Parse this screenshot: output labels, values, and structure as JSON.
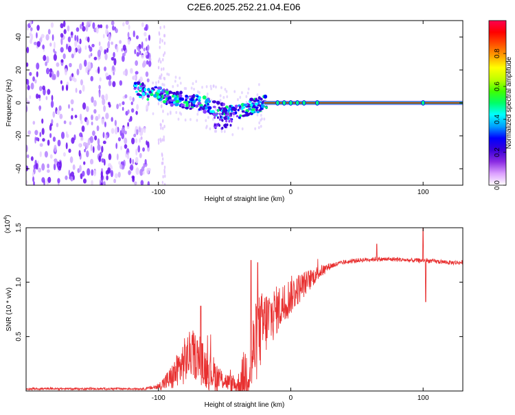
{
  "title": "C2E6.2025.252.21.04.E06",
  "chart_data": [
    {
      "type": "heatmap",
      "name": "spectrogram",
      "xlabel": "Height of straight line (km)",
      "ylabel": "Frequency (Hz)",
      "xlim": [
        -200,
        130
      ],
      "ylim": [
        -50,
        50
      ],
      "xticks": [
        -100,
        0,
        100
      ],
      "yticks": [
        -40,
        -20,
        0,
        20,
        40
      ],
      "colorbar": {
        "label": "Normalized spectral amplitude",
        "range": [
          0,
          1
        ],
        "ticks": [
          "0.0",
          "0.2",
          "0.4",
          "0.6",
          "0.8"
        ],
        "colors": [
          "#ffffff",
          "#dca0ff",
          "#8a2be2",
          "#3a00d8",
          "#0000ff",
          "#00a0ff",
          "#00ffff",
          "#00ff66",
          "#40ff00",
          "#c0ff00",
          "#ffff00",
          "#ffa000",
          "#ff5000",
          "#ff0000",
          "#ff0050"
        ]
      },
      "ridge": {
        "x": [
          -118,
          -110,
          -100,
          -90,
          -80,
          -70,
          -60,
          -55,
          -50,
          -45,
          -40,
          -35,
          -30,
          -25,
          -20,
          -15,
          -10,
          0,
          10,
          20,
          130
        ],
        "freq": [
          9,
          7,
          5,
          3,
          1.5,
          0,
          -2.5,
          -4,
          -5,
          -5.5,
          -5,
          -4,
          -2.5,
          -1.5,
          0,
          0,
          0.5,
          0.5,
          0.5,
          0,
          0
        ]
      },
      "noise_region_x": [
        -200,
        -110
      ],
      "carrier": {
        "x_start": -20,
        "x_end": 130,
        "freq": 0
      }
    },
    {
      "type": "line",
      "name": "snr",
      "xlabel": "Height of straight line (km)",
      "ylabel": "SNR (10 * v/v)",
      "multiplier_label": "(x10",
      "multiplier_exp": "4",
      "multiplier_close": ")",
      "xlim": [
        -200,
        130
      ],
      "ylim": [
        0,
        1.5
      ],
      "xticks": [
        -100,
        0,
        100
      ],
      "yticks": [
        "0.5",
        "1.0",
        "1.5"
      ],
      "color": "#e83030",
      "envelope": {
        "x": [
          -200,
          -110,
          -100,
          -90,
          -80,
          -75,
          -70,
          -65,
          -60,
          -55,
          -50,
          -45,
          -40,
          -35,
          -30,
          -25,
          -20,
          -15,
          -10,
          -5,
          0,
          10,
          20,
          30,
          40,
          50,
          60,
          70,
          80,
          90,
          100,
          110,
          120,
          130
        ],
        "y": [
          0.02,
          0.02,
          0.04,
          0.12,
          0.28,
          0.35,
          0.3,
          0.22,
          0.18,
          0.12,
          0.1,
          0.06,
          0.05,
          0.12,
          0.28,
          0.5,
          0.62,
          0.68,
          0.75,
          0.8,
          0.88,
          0.98,
          1.08,
          1.15,
          1.18,
          1.2,
          1.21,
          1.21,
          1.21,
          1.2,
          1.2,
          1.19,
          1.18,
          1.18
        ]
      },
      "noise_amplitude": {
        "x": [
          -200,
          -110,
          -100,
          -90,
          -80,
          -70,
          -60,
          -50,
          -40,
          -35,
          -30,
          -25,
          -20,
          -10,
          0,
          10,
          20,
          30,
          40,
          130
        ],
        "y": [
          0.01,
          0.01,
          0.03,
          0.12,
          0.22,
          0.22,
          0.18,
          0.08,
          0.1,
          0.28,
          0.38,
          0.38,
          0.32,
          0.22,
          0.18,
          0.12,
          0.07,
          0.03,
          0.02,
          0.02
        ]
      },
      "spikes": [
        {
          "x": -68,
          "y": 0.78
        },
        {
          "x": -30,
          "y": 1.2
        },
        {
          "x": -25,
          "y": 1.18
        },
        {
          "x": 65,
          "y": 1.35
        },
        {
          "x": 100,
          "y": 1.5
        },
        {
          "x": 102,
          "y": 0.82
        }
      ]
    }
  ]
}
